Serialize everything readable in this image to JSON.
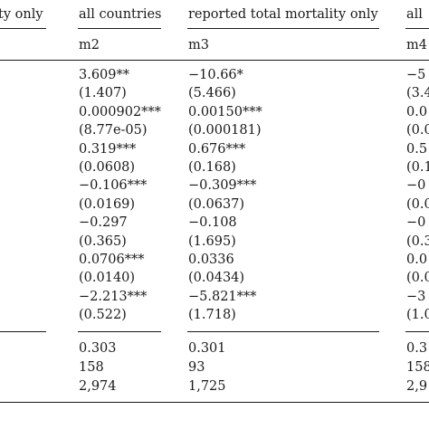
{
  "headers": {
    "col1": "ty only",
    "col2": "all countries",
    "col3": "reported total mortality only",
    "col4": "all"
  },
  "models": {
    "col2": "m2",
    "col3": "m3",
    "col4": "m4"
  },
  "coefficients": [
    {
      "col2": "3.609**",
      "col3": "−10.66*",
      "col4": "−5"
    },
    {
      "col2": "(1.407)",
      "col3": "(5.466)",
      "col4": "(3.4"
    },
    {
      "col2": "0.000902***",
      "col3": "0.00150***",
      "col4": "0.0"
    },
    {
      "col2": "(8.77e-05)",
      "col3": "(0.000181)",
      "col4": "(0.0"
    },
    {
      "col2": "0.319***",
      "col3": "0.676***",
      "col4": "0.5"
    },
    {
      "col2": "(0.0608)",
      "col3": "(0.168)",
      "col4": "(0.1"
    },
    {
      "col2": "−0.106***",
      "col3": "−0.309***",
      "col4": "−0"
    },
    {
      "col2": "(0.0169)",
      "col3": "(0.0637)",
      "col4": "(0.0"
    },
    {
      "col2": "−0.297",
      "col3": "−0.108",
      "col4": "−0"
    },
    {
      "col2": "(0.365)",
      "col3": "(1.695)",
      "col4": "(0.3"
    },
    {
      "col2": "0.0706***",
      "col3": "0.0336",
      "col4": "0.0"
    },
    {
      "col2": "(0.0140)",
      "col3": "(0.0434)",
      "col4": "(0.0"
    },
    {
      "col2": "−2.213***",
      "col3": "−5.821***",
      "col4": "−3"
    },
    {
      "col2": "(0.522)",
      "col3": "(1.718)",
      "col4": "(1.0"
    }
  ],
  "stats": [
    {
      "col2": "0.303",
      "col3": "0.301",
      "col4": "0.3"
    },
    {
      "col2": "158",
      "col3": "93",
      "col4": "158"
    },
    {
      "col2": "2,974",
      "col3": "1,725",
      "col4": "2,9"
    }
  ]
}
